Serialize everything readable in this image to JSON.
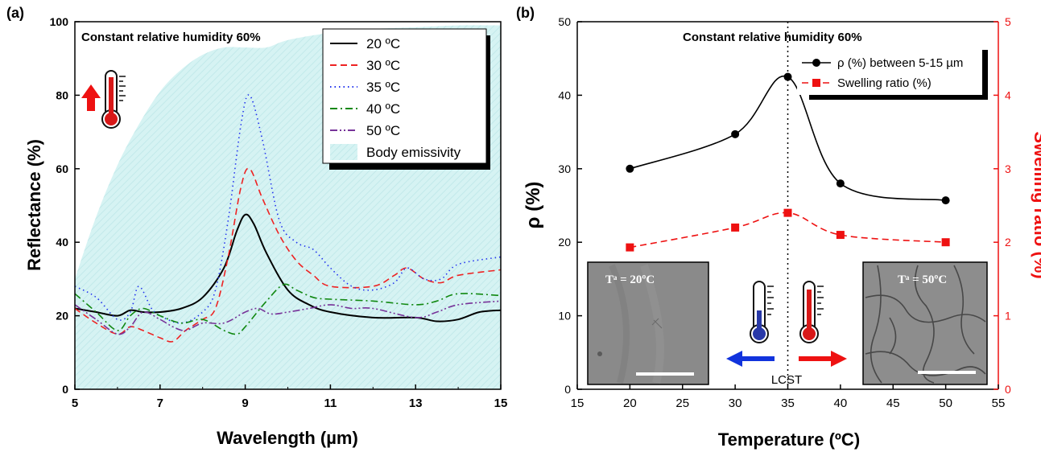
{
  "chart_data": [
    {
      "type": "line",
      "panel_label": "(a)",
      "annotation": "Constant relative humidity 60%",
      "xlabel": "Wavelength (µm)",
      "ylabel": "Reflectance (%)",
      "xlim": [
        5,
        15
      ],
      "ylim": [
        0,
        100
      ],
      "xticks": [
        "5",
        "7",
        "9",
        "11",
        "13",
        "15"
      ],
      "yticks": [
        "0",
        "20",
        "40",
        "60",
        "80",
        "100"
      ],
      "legend_position": "top-right",
      "area_series": {
        "name": "Body emissivity",
        "color": "#d3f2f2",
        "x": [
          5,
          5.5,
          6,
          6.5,
          7,
          7.5,
          8,
          8.5,
          9,
          9.5,
          10,
          11,
          12,
          13,
          14,
          15
        ],
        "y": [
          30,
          47,
          61,
          72,
          81,
          87,
          91,
          93,
          93,
          93,
          95,
          97,
          98,
          98.5,
          99,
          99
        ]
      },
      "series": [
        {
          "name": "20 ºC",
          "color": "#000000",
          "dash": "solid",
          "x": [
            5,
            5.5,
            6,
            6.3,
            6.6,
            7,
            7.5,
            8,
            8.5,
            8.8,
            9,
            9.2,
            9.5,
            10,
            10.5,
            11,
            12,
            13,
            13.5,
            14,
            14.5,
            15
          ],
          "y": [
            22,
            21,
            20,
            21.5,
            21,
            21,
            22,
            25,
            33,
            43,
            47.5,
            45,
            37,
            27,
            23,
            21,
            19.5,
            19.5,
            18.5,
            19,
            21,
            21.5
          ]
        },
        {
          "name": "30 ºC",
          "color": "#ee2222",
          "dash": "dash",
          "x": [
            5,
            5.5,
            6,
            6.3,
            6.6,
            7,
            7.3,
            7.6,
            8,
            8.3,
            8.6,
            8.9,
            9.1,
            9.4,
            9.8,
            10.2,
            10.6,
            11,
            12,
            12.5,
            12.8,
            13.2,
            13.6,
            14,
            15
          ],
          "y": [
            22,
            18,
            15,
            17,
            16,
            14,
            13,
            16,
            19,
            22,
            36,
            55,
            60,
            52,
            42,
            35,
            31,
            28,
            28,
            31,
            33,
            30,
            29,
            31,
            32.5
          ]
        },
        {
          "name": "35 ºC",
          "color": "#2233ee",
          "dash": "dot",
          "x": [
            5,
            5.5,
            6,
            6.3,
            6.5,
            6.8,
            7,
            7.5,
            8,
            8.3,
            8.6,
            8.9,
            9.1,
            9.4,
            9.8,
            10.2,
            10.6,
            11,
            11.5,
            12,
            12.5,
            12.8,
            13.2,
            13.6,
            14,
            15
          ],
          "y": [
            28,
            25,
            19,
            21,
            28,
            22,
            20,
            18,
            21,
            27,
            46,
            72,
            80,
            68,
            46,
            40,
            38,
            33,
            28,
            27,
            29,
            33,
            30,
            30,
            34,
            36
          ]
        },
        {
          "name": "40 ºC",
          "color": "#118811",
          "dash": "dashdot",
          "x": [
            5,
            5.5,
            6,
            6.3,
            6.6,
            7,
            7.5,
            8,
            8.5,
            8.8,
            9,
            9.5,
            9.9,
            10.2,
            10.6,
            11,
            12,
            13,
            13.5,
            14,
            15
          ],
          "y": [
            26,
            21,
            16,
            20,
            22,
            20,
            18,
            19,
            16,
            15,
            17,
            24,
            28.5,
            27,
            25,
            24.5,
            24,
            23,
            24,
            26,
            25.5
          ]
        },
        {
          "name": "50 ºC",
          "color": "#773399",
          "dash": "dashdotdot",
          "x": [
            5,
            5.5,
            6,
            6.3,
            6.6,
            7,
            7.3,
            7.6,
            8,
            8.5,
            9,
            9.3,
            9.6,
            10,
            10.5,
            11,
            11.5,
            12,
            13,
            13.5,
            14,
            15
          ],
          "y": [
            23,
            19,
            15,
            17,
            21,
            19,
            17,
            16,
            18,
            18,
            21,
            22,
            20.5,
            21,
            22,
            23,
            22,
            22,
            19.5,
            21,
            23,
            24
          ]
        }
      ]
    },
    {
      "type": "line",
      "panel_label": "(b)",
      "annotation": "Constant relative humidity 60%",
      "xlabel": "Temperature (ºC)",
      "ylabel": "ρ (%)",
      "ylabel_right": "Swelling ratio (%)",
      "right_axis_color": "#ee1111",
      "xlim": [
        15,
        55
      ],
      "ylim": [
        0,
        50
      ],
      "ylim_right": [
        0,
        5
      ],
      "xticks": [
        "15",
        "20",
        "25",
        "30",
        "35",
        "40",
        "45",
        "50",
        "55"
      ],
      "yticks": [
        "0",
        "10",
        "20",
        "30",
        "40",
        "50"
      ],
      "yticks_right": [
        "0",
        "1",
        "2",
        "3",
        "4",
        "5"
      ],
      "legend_position": "top-right",
      "vline": {
        "x": 35,
        "label": "LCST"
      },
      "series": [
        {
          "name": "ρ (%) between 5-15 µm",
          "color": "#000000",
          "axis": "left",
          "dash": "solid",
          "marker": "circle",
          "x": [
            20,
            30,
            35,
            40,
            50
          ],
          "y": [
            30,
            34.7,
            42.5,
            28,
            25.7
          ]
        },
        {
          "name": "Swelling ratio (%)",
          "color": "#ee1111",
          "axis": "right",
          "dash": "dash",
          "marker": "square",
          "x": [
            20,
            30,
            35,
            40,
            50
          ],
          "y": [
            1.93,
            2.2,
            2.4,
            2.1,
            2.0
          ]
        }
      ],
      "insets": [
        {
          "label": "Tᵃ = 20ºC",
          "position": "bottom-left"
        },
        {
          "label": "Tᵃ = 50ºC",
          "position": "bottom-right"
        }
      ]
    }
  ]
}
